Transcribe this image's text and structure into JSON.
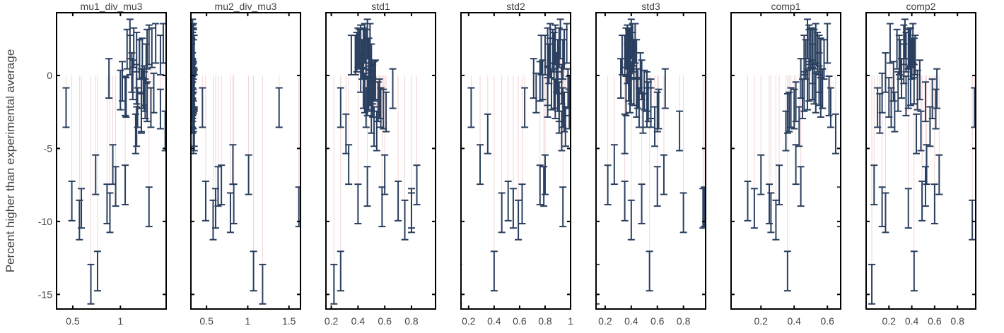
{
  "chart_data": {
    "type": "scatter",
    "ylabel": "Percent higher than experimental average",
    "ylim": [
      -16,
      4.3
    ],
    "yticks": [
      0,
      -5,
      -10,
      -15
    ],
    "error_bar_color": "#2a3f5f",
    "guide_color": "#f2d5d5",
    "y_values": [
      2.1,
      1.9,
      1.4,
      2.2,
      -6.8,
      1.8,
      2.5,
      1.4,
      1.9,
      1.1,
      1.2,
      1.6,
      1.8,
      1.1,
      0.8,
      2.2,
      0.2,
      -0.2,
      -0.4,
      -0.6,
      -0.9,
      -1.1,
      -1.4,
      -0.3,
      -0.7,
      -1.0,
      -1.8,
      -1.2,
      -3.5,
      -2.2,
      -2.3,
      -1.5,
      -3.8,
      -1.6,
      -2.5,
      -2.6,
      -0.9,
      -4.0,
      -2.2,
      -7.6,
      -8.8,
      -6.1,
      -9.4,
      -8.6,
      -9.0,
      -9.9,
      -7.5,
      -13.4,
      -2.2,
      -9.1,
      -14.3
    ],
    "panels": [
      {
        "title": "mu1_div_mu3",
        "xlim": [
          0.33,
          1.48
        ],
        "xticks": [
          {
            "v": 0.5,
            "t": "0.5"
          },
          {
            "v": 1.0,
            "t": "1"
          }
        ],
        "x_values": [
          1.3,
          1.33,
          1.1,
          1.37,
          0.74,
          1.28,
          1.1,
          1.42,
          1.14,
          1.2,
          1.23,
          1.17,
          1.07,
          1.2,
          1.27,
          1.45,
          1.12,
          0.88,
          1.02,
          1.17,
          1.22,
          1.25,
          1.05,
          1.13,
          1.25,
          1.0,
          1.28,
          1.35,
          1.17,
          1.32,
          1.42,
          1.06,
          1.47,
          1.26,
          1.22,
          1.22,
          1.24,
          1.16,
          1.18,
          0.95,
          0.86,
          0.92,
          0.89,
          0.49,
          1.3,
          0.57,
          1.05,
          0.76,
          0.43,
          0.59,
          0.69
        ]
      },
      {
        "title": "mu2_div_mu3",
        "xlim": [
          0.31,
          1.64
        ],
        "xticks": [
          {
            "v": 0.5,
            "t": "0.5"
          },
          {
            "v": 1.0,
            "t": "1"
          },
          {
            "v": 1.5,
            "t": "1.5"
          }
        ],
        "x_values": [
          0.33,
          0.34,
          0.33,
          0.32,
          1.01,
          0.34,
          0.33,
          0.35,
          0.33,
          0.34,
          0.32,
          0.33,
          0.34,
          0.33,
          0.32,
          0.34,
          0.33,
          0.33,
          0.34,
          0.32,
          0.33,
          0.34,
          0.33,
          0.33,
          0.32,
          0.35,
          0.33,
          0.34,
          0.35,
          0.33,
          0.34,
          0.32,
          0.35,
          0.33,
          0.34,
          0.33,
          0.35,
          0.34,
          0.45,
          0.64,
          0.83,
          0.82,
          0.79,
          0.49,
          1.62,
          0.58,
          0.68,
          1.07,
          1.38,
          0.61,
          1.18
        ]
      },
      {
        "title": "std1",
        "xlim": [
          0.16,
          0.98
        ],
        "xticks": [
          {
            "v": 0.2,
            "t": "0.2"
          },
          {
            "v": 0.4,
            "t": "0.4"
          },
          {
            "v": 0.6,
            "t": "0.6"
          },
          {
            "v": 0.8,
            "t": "0.8"
          }
        ],
        "x_values": [
          0.42,
          0.44,
          0.38,
          0.45,
          0.6,
          0.46,
          0.47,
          0.35,
          0.4,
          0.43,
          0.48,
          0.39,
          0.41,
          0.46,
          0.5,
          0.49,
          0.42,
          0.48,
          0.52,
          0.51,
          0.44,
          0.5,
          0.47,
          0.53,
          0.49,
          0.48,
          0.55,
          0.45,
          0.52,
          0.57,
          0.59,
          0.51,
          0.54,
          0.56,
          0.61,
          0.5,
          0.66,
          0.31,
          0.46,
          0.47,
          0.4,
          0.33,
          0.8,
          0.7,
          0.58,
          0.75,
          0.84,
          0.27,
          0.27,
          0.8,
          0.22
        ]
      },
      {
        "title": "std2",
        "xlim": [
          0.14,
          1.0
        ],
        "xticks": [
          {
            "v": 0.2,
            "t": "0.2"
          },
          {
            "v": 0.4,
            "t": "0.4"
          },
          {
            "v": 0.6,
            "t": "0.6"
          },
          {
            "v": 0.8,
            "t": "0.8"
          },
          {
            "v": 1.0,
            "t": "1"
          }
        ],
        "x_values": [
          0.88,
          0.91,
          0.8,
          0.84,
          0.8,
          0.86,
          0.92,
          0.77,
          0.82,
          0.9,
          0.84,
          0.87,
          0.95,
          0.94,
          0.83,
          0.97,
          0.89,
          0.71,
          0.76,
          0.93,
          0.98,
          0.9,
          0.99,
          0.78,
          0.82,
          0.85,
          0.91,
          0.73,
          0.96,
          0.94,
          0.99,
          0.82,
          0.93,
          0.88,
          0.95,
          0.91,
          0.87,
          0.35,
          0.64,
          0.79,
          0.62,
          0.29,
          0.46,
          0.51,
          0.94,
          0.59,
          0.76,
          0.4,
          0.22,
          0.55,
          0.12
        ]
      },
      {
        "title": "std3",
        "xlim": [
          0.13,
          0.97
        ],
        "xticks": [
          {
            "v": 0.2,
            "t": "0.2"
          },
          {
            "v": 0.4,
            "t": "0.4"
          },
          {
            "v": 0.6,
            "t": "0.6"
          },
          {
            "v": 0.8,
            "t": "0.8"
          }
        ],
        "x_values": [
          0.37,
          0.39,
          0.35,
          0.41,
          0.65,
          0.38,
          0.4,
          0.33,
          0.36,
          0.42,
          0.39,
          0.41,
          0.38,
          0.44,
          0.37,
          0.43,
          0.47,
          0.32,
          0.38,
          0.4,
          0.45,
          0.52,
          0.36,
          0.48,
          0.42,
          0.5,
          0.53,
          0.39,
          0.58,
          0.46,
          0.61,
          0.44,
          0.77,
          0.55,
          0.6,
          0.49,
          0.66,
          0.35,
          0.55,
          0.6,
          0.48,
          0.27,
          0.8,
          0.35,
          0.96,
          0.4,
          0.22,
          0.54,
          0.52,
          0.95,
          0.13
        ]
      },
      {
        "title": "comp1",
        "xlim": [
          0.02,
          0.68
        ],
        "xticks": [
          {
            "v": 0.2,
            "t": "0.2"
          },
          {
            "v": 0.4,
            "t": "0.4"
          },
          {
            "v": 0.6,
            "t": "0.6"
          }
        ],
        "x_values": [
          0.49,
          0.51,
          0.46,
          0.53,
          0.2,
          0.52,
          0.48,
          0.55,
          0.5,
          0.47,
          0.56,
          0.54,
          0.49,
          0.58,
          0.51,
          0.6,
          0.55,
          0.44,
          0.49,
          0.52,
          0.57,
          0.46,
          0.61,
          0.51,
          0.55,
          0.48,
          0.41,
          0.53,
          0.43,
          0.38,
          0.4,
          0.56,
          0.35,
          0.45,
          0.37,
          0.36,
          0.57,
          0.65,
          0.38,
          0.44,
          0.25,
          0.41,
          0.26,
          0.12,
          0.68,
          0.29,
          0.31,
          0.36,
          0.62,
          0.16,
          0.0
        ]
      },
      {
        "title": "comp2",
        "xlim": [
          0.0,
          0.96
        ],
        "xticks": [
          {
            "v": 0.2,
            "t": "0.2"
          },
          {
            "v": 0.4,
            "t": "0.4"
          },
          {
            "v": 0.6,
            "t": "0.6"
          },
          {
            "v": 0.8,
            "t": "0.8"
          }
        ],
        "x_values": [
          0.33,
          0.38,
          0.29,
          0.41,
          0.64,
          0.37,
          0.34,
          0.43,
          0.39,
          0.3,
          0.42,
          0.35,
          0.27,
          0.4,
          0.33,
          0.21,
          0.17,
          0.31,
          0.24,
          0.42,
          0.37,
          0.28,
          0.35,
          0.47,
          0.39,
          0.45,
          0.52,
          0.14,
          0.56,
          0.1,
          0.61,
          0.2,
          0.48,
          0.58,
          0.25,
          0.12,
          0.62,
          0.44,
          0.22,
          0.52,
          0.6,
          0.53,
          0.17,
          0.49,
          0.14,
          0.93,
          0.07,
          0.42,
          0.95,
          0.37,
          0.05
        ]
      }
    ]
  }
}
